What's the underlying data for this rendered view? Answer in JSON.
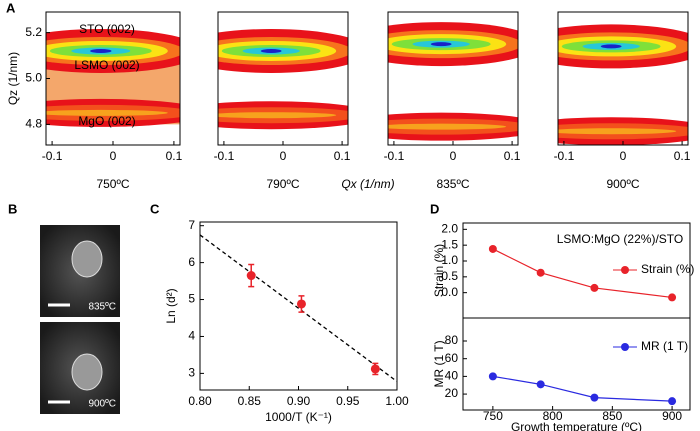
{
  "chart_data": [
    {
      "type": "rsm",
      "panel": "A",
      "title": "750ºC",
      "ylabel": "Qz (1/nm)",
      "xlim": [
        -0.11,
        0.11
      ],
      "xticks": [
        -0.1,
        0,
        0.1
      ],
      "ylim": [
        4.71,
        5.29
      ],
      "yticks": [
        4.8,
        {
          "value": 5,
          "label": "5.0"
        },
        5.2
      ],
      "values": [
        5.12,
        4.85
      ],
      "annotations": [
        "STO (002)",
        "LSMO (002)",
        "MgO (002)"
      ]
    },
    {
      "type": "rsm",
      "title": "790ºC",
      "xlabel": "Qx (1/nm)",
      "xlim": [
        -0.11,
        0.11
      ],
      "xticks": [
        -0.1,
        0,
        0.1
      ],
      "ylim": [
        4.71,
        5.29
      ],
      "values": [
        5.12,
        4.84
      ]
    },
    {
      "type": "rsm",
      "title": "835ºC",
      "xlim": [
        -0.11,
        0.11
      ],
      "xticks": [
        -0.1,
        0,
        0.1
      ],
      "ylim": [
        4.71,
        5.29
      ],
      "values": [
        5.15,
        4.79
      ]
    },
    {
      "type": "rsm",
      "title": "900ºC",
      "xlim": [
        -0.11,
        0.11
      ],
      "xticks": [
        -0.1,
        0,
        0.1
      ],
      "ylim": [
        4.71,
        5.29
      ],
      "values": [
        5.14,
        4.77
      ]
    },
    {
      "type": "image",
      "panel": "B",
      "labels": [
        "835ºC",
        "900ºC"
      ]
    },
    {
      "type": "scatter",
      "panel": "C",
      "xlabel": "1000/T (K⁻¹)",
      "ylabel": "Ln (d²)",
      "xlim": [
        0.8,
        1.0
      ],
      "xticks": [
        {
          "value": 0.8,
          "label": "0.80"
        },
        0.85,
        {
          "value": 0.9,
          "label": "0.90"
        },
        0.95,
        {
          "value": 1.0,
          "label": "1.00"
        }
      ],
      "ylim": [
        2.55,
        7.1
      ],
      "yticks": [
        3,
        4,
        5,
        6,
        7
      ],
      "color": "#e8232a",
      "x": [
        0.852,
        0.903,
        0.978
      ],
      "values": [
        5.65,
        4.88,
        3.12
      ],
      "errors": [
        0.3,
        0.22,
        0.15
      ],
      "fit": {
        "x": [
          0.8,
          1.0
        ],
        "values": [
          6.75,
          2.78
        ]
      }
    },
    {
      "type": "line",
      "panel": "D",
      "title": "LSMO:MgO (22%)/STO",
      "xlabel": "Growth temperature (ºC)",
      "x": [
        750,
        790,
        835,
        900
      ],
      "xlim": [
        725,
        915
      ],
      "xticks": [
        750,
        800,
        850,
        900
      ],
      "series": [
        {
          "name": "Strain (%)",
          "ylabel": "Strain (%)",
          "color": "#e8232a",
          "values": [
            1.38,
            0.63,
            0.15,
            -0.15
          ],
          "ylim": [
            -0.8,
            2.2
          ],
          "yticks": [
            {
              "value": 0,
              "label": "0.0"
            },
            {
              "value": 0.5,
              "label": "0.5"
            },
            {
              "value": 1,
              "label": "1.0"
            },
            {
              "value": 1.5,
              "label": "1.5"
            },
            {
              "value": 2,
              "label": "2.0"
            }
          ]
        },
        {
          "name": "MR (1 T)",
          "ylabel": "MR (1 T)",
          "color": "#2a2ae0",
          "values": [
            40,
            31,
            16,
            12
          ],
          "ylim": [
            2,
            106
          ],
          "yticks": [
            20,
            40,
            60,
            80
          ]
        }
      ]
    }
  ]
}
